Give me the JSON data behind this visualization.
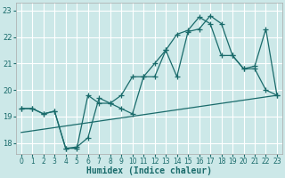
{
  "xlabel": "Humidex (Indice chaleur)",
  "bg_color": "#cce8e8",
  "grid_color": "#ffffff",
  "line_color": "#1a6b6b",
  "ylim": [
    17.6,
    23.3
  ],
  "xlim": [
    -0.5,
    23.5
  ],
  "yticks": [
    18,
    19,
    20,
    21,
    22,
    23
  ],
  "xticks": [
    0,
    1,
    2,
    3,
    4,
    5,
    6,
    7,
    8,
    9,
    10,
    11,
    12,
    13,
    14,
    15,
    16,
    17,
    18,
    19,
    20,
    21,
    22,
    23
  ],
  "line1_x": [
    0,
    1,
    2,
    3,
    4,
    5,
    6,
    7,
    8,
    9,
    10,
    11,
    12,
    13,
    14,
    15,
    16,
    17,
    18,
    19,
    20,
    21,
    22,
    23
  ],
  "line1_y": [
    19.3,
    19.3,
    19.1,
    19.2,
    17.8,
    17.85,
    18.2,
    19.7,
    19.5,
    19.8,
    20.5,
    20.5,
    21.0,
    21.5,
    22.1,
    22.25,
    22.75,
    22.5,
    21.3,
    21.3,
    20.8,
    20.9,
    22.3,
    19.8
  ],
  "line2_x": [
    0,
    1,
    2,
    3,
    4,
    5,
    6,
    7,
    8,
    9,
    10,
    11,
    12,
    13,
    14,
    15,
    16,
    17,
    18,
    19,
    20,
    21,
    22,
    23
  ],
  "line2_y": [
    19.3,
    19.3,
    19.1,
    19.2,
    17.8,
    17.8,
    19.8,
    19.5,
    19.5,
    19.3,
    19.1,
    20.5,
    20.5,
    21.5,
    20.5,
    22.2,
    22.3,
    22.8,
    22.5,
    21.3,
    20.8,
    20.8,
    20.0,
    19.8
  ],
  "line3_x": [
    0,
    23
  ],
  "line3_y": [
    18.4,
    19.8
  ],
  "marker_size": 4,
  "linewidth": 0.9,
  "tick_fontsize": 5.5,
  "label_fontsize": 7
}
